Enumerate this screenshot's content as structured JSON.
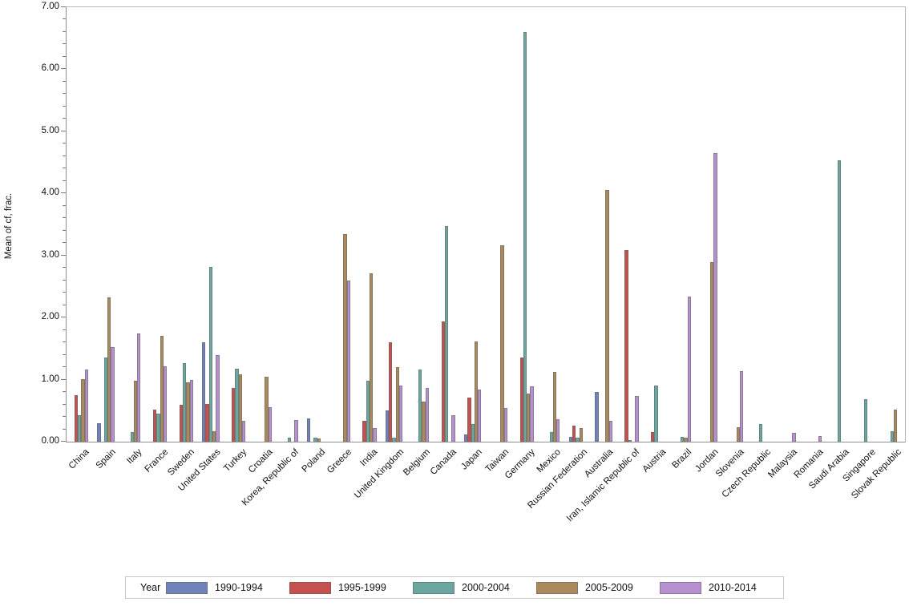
{
  "chart_data": {
    "type": "bar",
    "title": "",
    "ylabel": "Mean of cf, frac.",
    "xlabel": "",
    "ylim": [
      0,
      7
    ],
    "ytick_step": 1.0,
    "ytick_minor_step": 0.2,
    "ytick_labels": [
      "0.00",
      "1.00",
      "2.00",
      "3.00",
      "4.00",
      "5.00",
      "6.00",
      "7.00"
    ],
    "grid": false,
    "legend": {
      "title": "Year",
      "position": "bottom"
    },
    "categories": [
      "China",
      "Spain",
      "Italy",
      "France",
      "Sweden",
      "United States",
      "Turkey",
      "Croatia",
      "Korea, Republic of",
      "Poland",
      "Greece",
      "India",
      "United Kingdom",
      "Belgium",
      "Canada",
      "Japan",
      "Taiwan",
      "Germany",
      "Mexico",
      "Russian Federation",
      "Australia",
      "Iran, Islamic Republic of",
      "Austria",
      "Brazil",
      "Jordan",
      "Slovenia",
      "Czech Republic",
      "Malaysia",
      "Romania",
      "Saudi Arabia",
      "Singapore",
      "Slovak Republic"
    ],
    "series": [
      {
        "name": "1990-1994",
        "color": "#7181B9",
        "values": [
          null,
          0.3,
          null,
          null,
          null,
          1.6,
          null,
          null,
          null,
          0.37,
          null,
          null,
          0.5,
          null,
          null,
          0.11,
          null,
          null,
          null,
          0.08,
          0.8,
          null,
          null,
          null,
          null,
          null,
          null,
          null,
          null,
          null,
          null,
          null
        ]
      },
      {
        "name": "1995-1999",
        "color": "#C5514E",
        "values": [
          0.75,
          null,
          null,
          0.52,
          0.6,
          0.61,
          0.87,
          null,
          null,
          null,
          null,
          0.34,
          1.6,
          null,
          1.94,
          0.71,
          null,
          1.36,
          null,
          0.26,
          null,
          3.09,
          0.16,
          null,
          null,
          null,
          null,
          null,
          null,
          null,
          null,
          null
        ]
      },
      {
        "name": "2000-2004",
        "color": "#6AA7A1",
        "values": [
          0.43,
          1.35,
          0.15,
          0.45,
          1.26,
          2.81,
          1.18,
          null,
          0.07,
          0.07,
          null,
          0.98,
          0.06,
          1.16,
          3.48,
          0.28,
          null,
          6.6,
          0.16,
          0.06,
          null,
          0.03,
          0.9,
          0.08,
          null,
          null,
          0.28,
          null,
          null,
          4.53,
          0.68,
          0.17
        ]
      },
      {
        "name": "2005-2009",
        "color": "#AA8A5D",
        "values": [
          1.01,
          2.33,
          0.98,
          1.7,
          0.95,
          0.17,
          1.09,
          1.05,
          null,
          0.05,
          3.34,
          2.71,
          1.2,
          0.65,
          null,
          1.61,
          3.16,
          0.77,
          1.13,
          0.22,
          4.06,
          null,
          null,
          0.06,
          2.89,
          0.23,
          null,
          null,
          null,
          null,
          null,
          0.52
        ]
      },
      {
        "name": "2010-2014",
        "color": "#B690CF",
        "values": [
          1.16,
          1.53,
          1.75,
          1.22,
          1.0,
          1.39,
          0.33,
          0.55,
          0.35,
          null,
          2.6,
          0.22,
          0.9,
          0.87,
          0.43,
          0.84,
          0.54,
          0.89,
          0.36,
          null,
          0.34,
          0.74,
          null,
          2.34,
          4.65,
          1.14,
          null,
          0.14,
          0.09,
          null,
          null,
          null
        ]
      }
    ]
  }
}
